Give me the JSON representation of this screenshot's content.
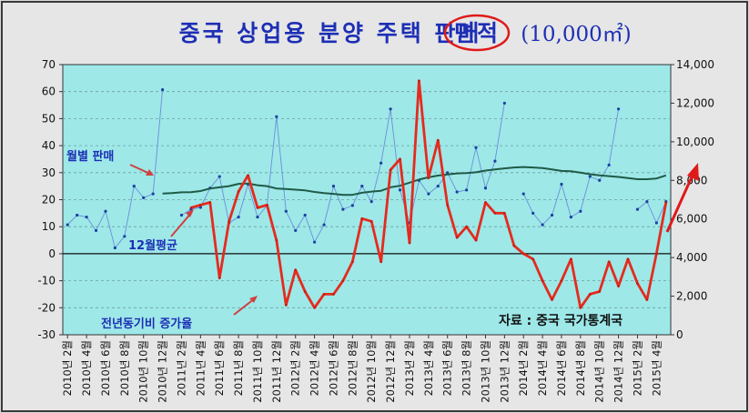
{
  "chart_data": {
    "type": "line",
    "title": "중국 상업용 분양 주택 판매 ",
    "title_highlight": "면적",
    "title_unit": "(10,000㎡)",
    "source": "자료 : 중국 국가통계국",
    "annotations": {
      "monthly": "월별 판매",
      "ma12": "12월평균",
      "yoy": "전년동기비 증가율"
    },
    "categories": [
      "2010년 2월",
      "2010년 3월",
      "2010년 4월",
      "2010년 5월",
      "2010년 6월",
      "2010년 7월",
      "2010년 8월",
      "2010년 9월",
      "2010년 10월",
      "2010년 11월",
      "2010년 12월",
      "2011년 1월",
      "2011년 2월",
      "2011년 3월",
      "2011년 4월",
      "2011년 5월",
      "2011년 6월",
      "2011년 7월",
      "2011년 8월",
      "2011년 9월",
      "2011년 10월",
      "2011년 11월",
      "2011년 12월",
      "2012년 1월",
      "2012년 2월",
      "2012년 3월",
      "2012년 4월",
      "2012년 5월",
      "2012년 6월",
      "2012년 7월",
      "2012년 8월",
      "2012년 9월",
      "2012년 10월",
      "2012년 11월",
      "2012년 12월",
      "2013년 1월",
      "2013년 2월",
      "2013년 3월",
      "2013년 4월",
      "2013년 5월",
      "2013년 6월",
      "2013년 7월",
      "2013년 8월",
      "2013년 9월",
      "2013년 10월",
      "2013년 11월",
      "2013년 12월",
      "2014년 1월",
      "2014년 2월",
      "2014년 3월",
      "2014년 4월",
      "2014년 5월",
      "2014년 6월",
      "2014년 7월",
      "2014년 8월",
      "2014년 9월",
      "2014년 10월",
      "2014년 11월",
      "2014년 12월",
      "2015년 1월",
      "2015년 2월",
      "2015년 3월",
      "2015년 4월",
      "2015년 5월"
    ],
    "x_tick_labels": [
      "2010년 2월",
      "2010년 4월",
      "2010년 6월",
      "2010년 8월",
      "2010년 10월",
      "2010년 12월",
      "2011년 2월",
      "2011년 4월",
      "2011년 6월",
      "2011년 8월",
      "2011년 10월",
      "2011년 12월",
      "2012년 2월",
      "2012년 4월",
      "2012년 6월",
      "2012년 8월",
      "2012년 10월",
      "2012년 12월",
      "2013년 2월",
      "2013년 4월",
      "2013년 6월",
      "2013년 8월",
      "2013년 10월",
      "2013년 12월",
      "2014년 2월",
      "2014년 4월",
      "2014년 6월",
      "2014년 8월",
      "2014년 10월",
      "2014년 12월",
      "2015년 2월",
      "2015년 4월"
    ],
    "y_left": {
      "min": -30,
      "max": 70,
      "ticks": [
        -30,
        -20,
        -10,
        0,
        10,
        20,
        30,
        40,
        50,
        60,
        70
      ]
    },
    "y_right": {
      "min": 0,
      "max": 14000,
      "ticks": [
        "0",
        "2,000",
        "4,000",
        "6,000",
        "8,000",
        "10,000",
        "12,000",
        "14,000"
      ]
    },
    "series": [
      {
        "axis": "right",
        "color": "#6a8fd8",
        "values": [
          5700,
          6200,
          6100,
          5400,
          6400,
          4500,
          5100,
          7700,
          7100,
          7300,
          12700,
          null,
          6200,
          6500,
          6600,
          7600,
          8200,
          5800,
          6100,
          7800,
          6100,
          6700,
          11300,
          6400,
          5400,
          6200,
          4800,
          5700,
          7700,
          6500,
          6700,
          7700,
          6900,
          8900,
          11700,
          7500,
          5800,
          8000,
          7300,
          7700,
          8400,
          7400,
          7500,
          9700,
          7600,
          9000,
          12000,
          null,
          7300,
          6300,
          5700,
          6200,
          7800,
          6100,
          6400,
          8200,
          8000,
          8800,
          11700,
          null,
          6500,
          6900,
          5800,
          6900
        ]
      },
      {
        "axis": "right",
        "color": "#1f5a46",
        "values": [
          null,
          null,
          null,
          null,
          null,
          null,
          null,
          null,
          null,
          null,
          7320,
          7340,
          7380,
          7390,
          7450,
          7580,
          7640,
          7700,
          7820,
          7840,
          7750,
          7700,
          7580,
          7550,
          7520,
          7480,
          7400,
          7340,
          7300,
          7250,
          7250,
          7360,
          7420,
          7460,
          7640,
          7720,
          7880,
          8040,
          8160,
          8250,
          8310,
          8360,
          8380,
          8420,
          8510,
          8570,
          8620,
          8670,
          8690,
          8670,
          8640,
          8570,
          8490,
          8470,
          8400,
          8320,
          8260,
          8220,
          8180,
          8120,
          8060,
          8060,
          8100,
          8260
        ]
      },
      {
        "axis": "left",
        "color": "#e42b1e",
        "values": [
          null,
          null,
          null,
          null,
          null,
          null,
          null,
          null,
          null,
          null,
          null,
          null,
          null,
          17,
          18,
          19,
          -9,
          12,
          23,
          29,
          17,
          18,
          5,
          -19,
          -6,
          -14,
          -20,
          -15,
          -15,
          -10,
          -3,
          13,
          12,
          -3,
          31,
          35,
          4,
          64,
          28,
          42,
          18,
          6,
          10,
          5,
          19,
          15,
          15,
          3,
          0,
          -2,
          -10,
          -17,
          -10,
          -2,
          -20,
          -15,
          -14,
          -3,
          -12,
          -2,
          -11,
          -17,
          0,
          19
        ]
      }
    ]
  }
}
